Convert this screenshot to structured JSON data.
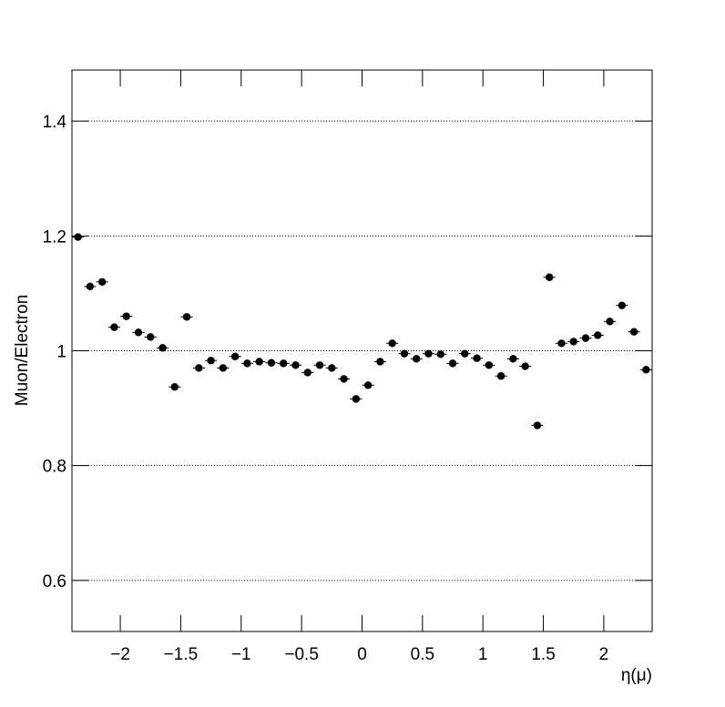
{
  "chart_data": {
    "type": "scatter",
    "x_label": "η(μ)",
    "y_label": "Muon/Electron",
    "x": [
      -2.35,
      -2.25,
      -2.15,
      -2.05,
      -1.95,
      -1.85,
      -1.75,
      -1.65,
      -1.55,
      -1.45,
      -1.35,
      -1.25,
      -1.15,
      -1.05,
      -0.95,
      -0.85,
      -0.75,
      -0.65,
      -0.55,
      -0.45,
      -0.35,
      -0.25,
      -0.15,
      -0.05,
      0.05,
      0.15,
      0.25,
      0.35,
      0.45,
      0.55,
      0.65,
      0.75,
      0.85,
      0.95,
      1.05,
      1.15,
      1.25,
      1.35,
      1.45,
      1.55,
      1.65,
      1.75,
      1.85,
      1.95,
      2.05,
      2.15,
      2.25,
      2.35
    ],
    "values": [
      1.198,
      1.112,
      1.12,
      1.041,
      1.06,
      1.032,
      1.024,
      1.005,
      0.937,
      1.059,
      0.97,
      0.983,
      0.97,
      0.99,
      0.978,
      0.981,
      0.979,
      0.978,
      0.975,
      0.962,
      0.975,
      0.97,
      0.951,
      0.916,
      0.94,
      0.981,
      1.013,
      0.995,
      0.986,
      0.995,
      0.994,
      0.978,
      0.995,
      0.987,
      0.975,
      0.956,
      0.986,
      0.973,
      0.87,
      1.128,
      1.013,
      1.016,
      1.022,
      1.027,
      1.051,
      1.079,
      1.033,
      0.967
    ],
    "color": "#000000",
    "xlim": [
      -2.4,
      2.4
    ],
    "ylim": [
      0.511,
      1.489
    ],
    "xticks": [
      {
        "value": -2,
        "label": "−2"
      },
      {
        "value": -1.5,
        "label": "−1.5"
      },
      {
        "value": -1,
        "label": "−1"
      },
      {
        "value": -0.5,
        "label": "−0.5"
      },
      0,
      0.5,
      1,
      1.5,
      2
    ],
    "yticks": [
      0.6,
      0.8,
      1,
      1.2,
      1.4
    ],
    "grid": true
  }
}
